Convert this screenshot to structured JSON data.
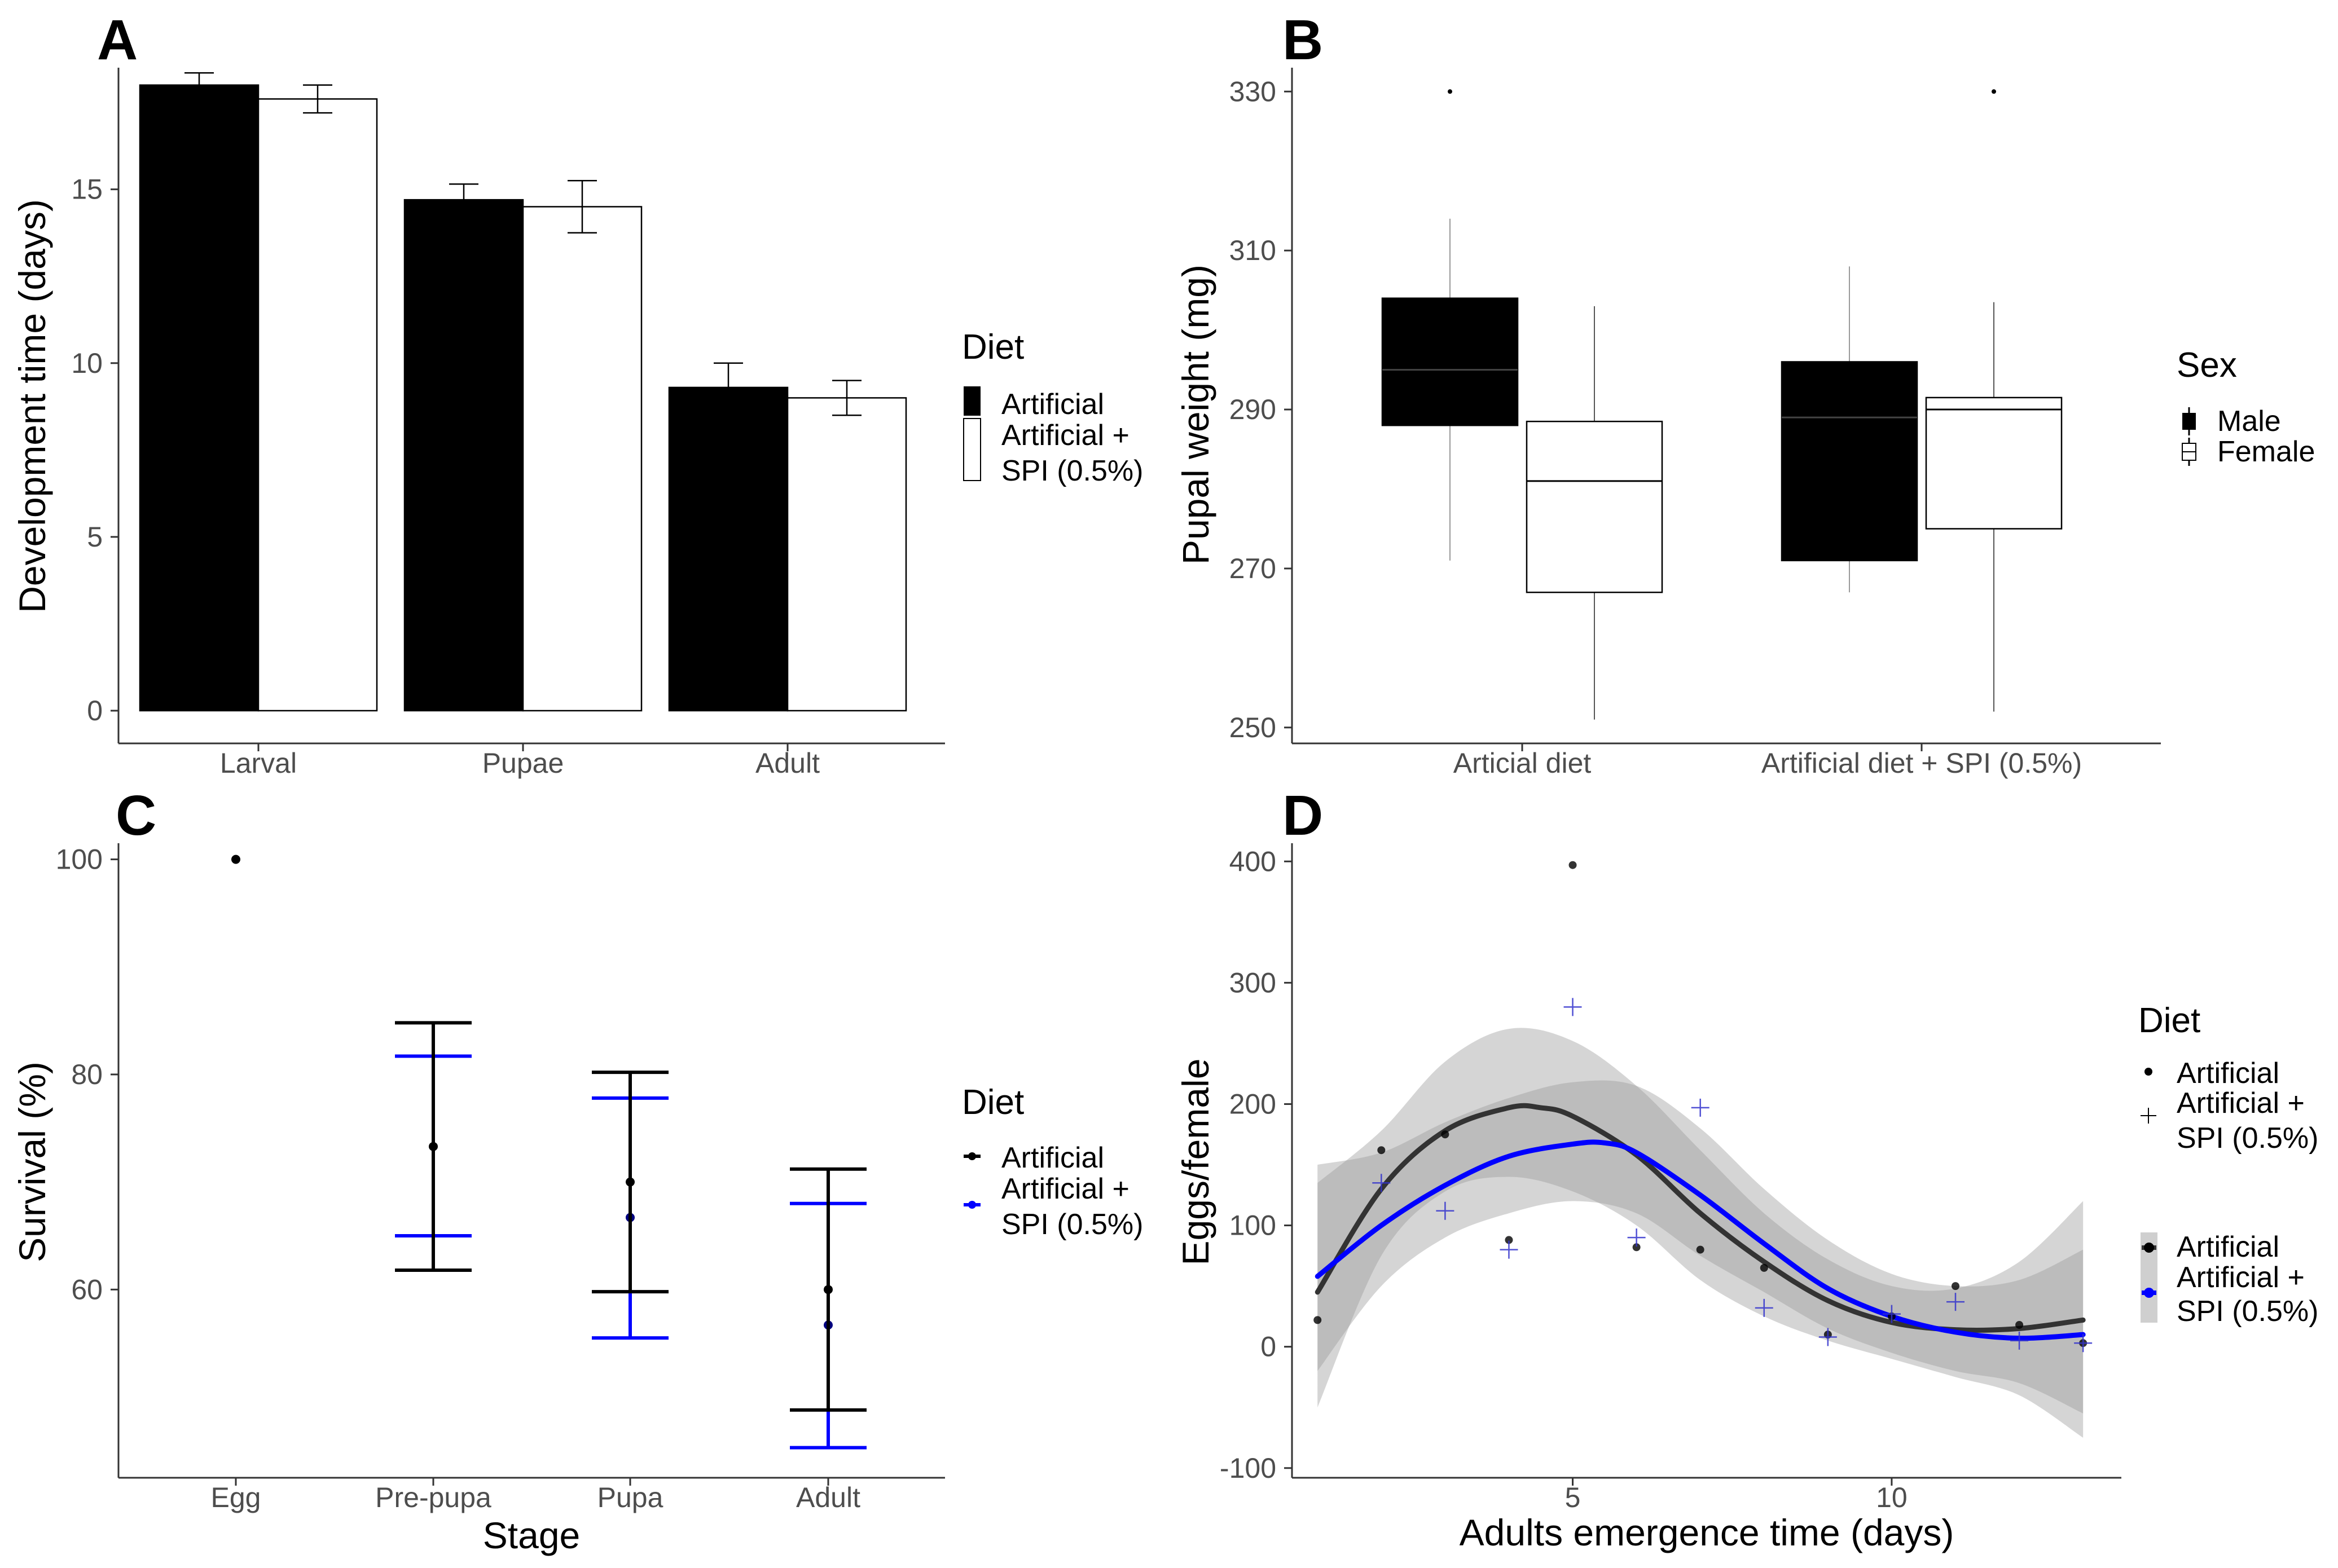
{
  "chart_data": [
    {
      "panel": "A",
      "type": "bar",
      "title": "",
      "xlabel": "",
      "ylabel": "Development time (days)",
      "ylim": [
        0,
        18.5
      ],
      "yticks": [
        0,
        5,
        10,
        15
      ],
      "categories": [
        "Larval",
        "Pupae",
        "Adult"
      ],
      "series": [
        {
          "name": "Artificial",
          "fill": "#000000",
          "values": [
            18.0,
            14.7,
            9.3
          ],
          "err": [
            0.35,
            0.45,
            0.7
          ]
        },
        {
          "name": "Artificial + SPI (0.5%)",
          "fill": "#ffffff",
          "values": [
            17.6,
            14.5,
            9.0
          ],
          "err": [
            0.4,
            0.75,
            0.5
          ]
        }
      ],
      "legend": {
        "title": "Diet",
        "position": "right",
        "entries": [
          "Artificial",
          "Artificial +",
          "SPI (0.5%)"
        ]
      }
    },
    {
      "panel": "B",
      "type": "box",
      "title": "",
      "xlabel": "",
      "ylabel": "Pupal weight (mg)",
      "ylim": [
        248,
        333
      ],
      "yticks": [
        250,
        270,
        290,
        310,
        330
      ],
      "categories": [
        "Articial diet",
        "Artificial diet + SPI (0.5%)"
      ],
      "boxes": [
        {
          "group": "Articial diet",
          "sex": "Male",
          "fill": "#000000",
          "min": 271,
          "q1": 288,
          "median": 295,
          "q3": 304,
          "max": 314,
          "outliers": [
            330
          ]
        },
        {
          "group": "Articial diet",
          "sex": "Female",
          "fill": "#ffffff",
          "min": 251,
          "q1": 267,
          "median": 281,
          "q3": 288.5,
          "max": 303,
          "outliers": []
        },
        {
          "group": "Artificial diet + SPI (0.5%)",
          "sex": "Male",
          "fill": "#000000",
          "min": 267,
          "q1": 271,
          "median": 289,
          "q3": 296,
          "max": 308,
          "outliers": []
        },
        {
          "group": "Artificial diet + SPI (0.5%)",
          "sex": "Female",
          "fill": "#ffffff",
          "min": 252,
          "q1": 275,
          "median": 290,
          "q3": 291.5,
          "max": 303.5,
          "outliers": [
            330
          ]
        }
      ],
      "legend": {
        "title": "Sex",
        "position": "right",
        "entries": [
          "Male",
          "Female"
        ]
      }
    },
    {
      "panel": "C",
      "type": "errorbar",
      "title": "",
      "xlabel": "Stage",
      "ylabel": "Survival (%)",
      "ylim": [
        42.5,
        101.5
      ],
      "yticks": [
        60,
        80,
        100
      ],
      "categories": [
        "Egg",
        "Pre-pupa",
        "Pupa",
        "Adult"
      ],
      "series": [
        {
          "name": "Artificial",
          "color": "#000000",
          "means": [
            100,
            73.3,
            70,
            60
          ],
          "lower": [
            100,
            61.8,
            59.8,
            48.8
          ],
          "upper": [
            100,
            84.8,
            80.2,
            71.2
          ]
        },
        {
          "name": "Artificial + SPI (0.5%)",
          "color": "#0000ff",
          "means": [
            null,
            null,
            66.7,
            56.7
          ],
          "lower": [
            null,
            65.0,
            55.5,
            45.3
          ],
          "upper": [
            null,
            81.7,
            77.8,
            68.0
          ]
        }
      ],
      "legend": {
        "title": "Diet",
        "position": "right",
        "entries": [
          "Artificial",
          "Artificial +",
          "SPI (0.5%)"
        ]
      }
    },
    {
      "panel": "D",
      "type": "scatter",
      "title": "",
      "xlabel": "Adults emergence time (days)",
      "ylabel": "Eggs/female",
      "xlim": [
        0.6,
        13.6
      ],
      "ylim": [
        -108,
        415
      ],
      "xticks": [
        5,
        10
      ],
      "yticks": [
        -100,
        0,
        100,
        200,
        300,
        400
      ],
      "series": [
        {
          "name": "Artificial",
          "color": "#000000",
          "points": [
            [
              1,
              22
            ],
            [
              2,
              162
            ],
            [
              3,
              175
            ],
            [
              4,
              88
            ],
            [
              5,
              397
            ],
            [
              6,
              82
            ],
            [
              7,
              80
            ],
            [
              8,
              65
            ],
            [
              9,
              10
            ],
            [
              10,
              25
            ],
            [
              11,
              50
            ],
            [
              12,
              18
            ],
            [
              13,
              3
            ]
          ],
          "smooth": [
            [
              1,
              45
            ],
            [
              2,
              130
            ],
            [
              3,
              178
            ],
            [
              4,
              197
            ],
            [
              4.5,
              197
            ],
            [
              5,
              190
            ],
            [
              6,
              158
            ],
            [
              7,
              110
            ],
            [
              8,
              70
            ],
            [
              9,
              38
            ],
            [
              10,
              20
            ],
            [
              11,
              14
            ],
            [
              12,
              15
            ],
            [
              13,
              22
            ]
          ],
          "band_upper": [
            [
              1,
              135
            ],
            [
              2,
              178
            ],
            [
              3,
              235
            ],
            [
              4,
              262
            ],
            [
              5,
              252
            ],
            [
              6,
              215
            ],
            [
              7,
              162
            ],
            [
              8,
              110
            ],
            [
              9,
              72
            ],
            [
              10,
              50
            ],
            [
              11,
              48
            ],
            [
              12,
              70
            ],
            [
              13,
              120
            ]
          ],
          "band_lower": [
            [
              1,
              -50
            ],
            [
              2,
              75
            ],
            [
              3,
              128
            ],
            [
              4,
              140
            ],
            [
              5,
              128
            ],
            [
              6,
              100
            ],
            [
              7,
              55
            ],
            [
              8,
              25
            ],
            [
              9,
              5
            ],
            [
              10,
              -10
            ],
            [
              11,
              -25
            ],
            [
              12,
              -40
            ],
            [
              13,
              -75
            ]
          ]
        },
        {
          "name": "Artificial + SPI (0.5%)",
          "color": "#0000ff",
          "points": [
            [
              2,
              135
            ],
            [
              3,
              112
            ],
            [
              4,
              80
            ],
            [
              5,
              280
            ],
            [
              6,
              90
            ],
            [
              7,
              197
            ],
            [
              8,
              32
            ],
            [
              9,
              8
            ],
            [
              10,
              27
            ],
            [
              11,
              37
            ],
            [
              12,
              5
            ],
            [
              13,
              3
            ]
          ],
          "smooth": [
            [
              1,
              58
            ],
            [
              2,
              100
            ],
            [
              3,
              133
            ],
            [
              4,
              157
            ],
            [
              5,
              167
            ],
            [
              5.5,
              168
            ],
            [
              6,
              160
            ],
            [
              7,
              125
            ],
            [
              8,
              85
            ],
            [
              9,
              48
            ],
            [
              10,
              25
            ],
            [
              11,
              12
            ],
            [
              12,
              7
            ],
            [
              13,
              10
            ]
          ],
          "band_upper": [
            [
              1,
              150
            ],
            [
              2,
              160
            ],
            [
              3,
              185
            ],
            [
              4,
              205
            ],
            [
              5,
              218
            ],
            [
              6,
              215
            ],
            [
              7,
              180
            ],
            [
              8,
              130
            ],
            [
              9,
              88
            ],
            [
              10,
              60
            ],
            [
              11,
              50
            ],
            [
              12,
              55
            ],
            [
              13,
              80
            ]
          ],
          "band_lower": [
            [
              1,
              -20
            ],
            [
              2,
              50
            ],
            [
              3,
              90
            ],
            [
              4,
              110
            ],
            [
              5,
              120
            ],
            [
              6,
              110
            ],
            [
              7,
              75
            ],
            [
              8,
              45
            ],
            [
              9,
              15
            ],
            [
              10,
              -5
            ],
            [
              11,
              -20
            ],
            [
              12,
              -30
            ],
            [
              13,
              -55
            ]
          ]
        }
      ],
      "legend": {
        "title": "Diet",
        "position": "right",
        "entries": [
          "Artificial",
          "Artificial +",
          "SPI (0.5%)"
        ]
      }
    }
  ]
}
